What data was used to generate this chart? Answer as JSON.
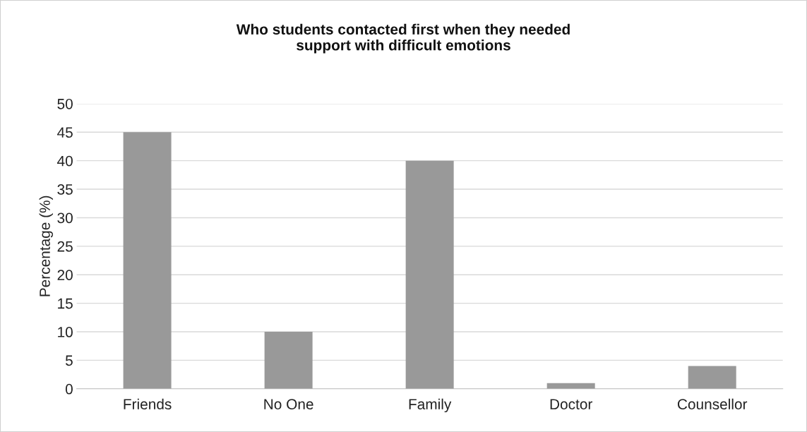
{
  "chart_data": {
    "type": "bar",
    "title": "Who students contacted first when they needed\nsupport with difficult emotions",
    "ylabel": "Percentage (%)",
    "categories": [
      "Friends",
      "No One",
      "Family",
      "Doctor",
      "Counsellor"
    ],
    "values": [
      45,
      10,
      40,
      1,
      4
    ],
    "color": "#999999",
    "ylim": [
      0,
      50
    ],
    "yticks": [
      0,
      5,
      10,
      15,
      20,
      25,
      30,
      35,
      40,
      45,
      50
    ],
    "grid": "y",
    "legend": false
  }
}
